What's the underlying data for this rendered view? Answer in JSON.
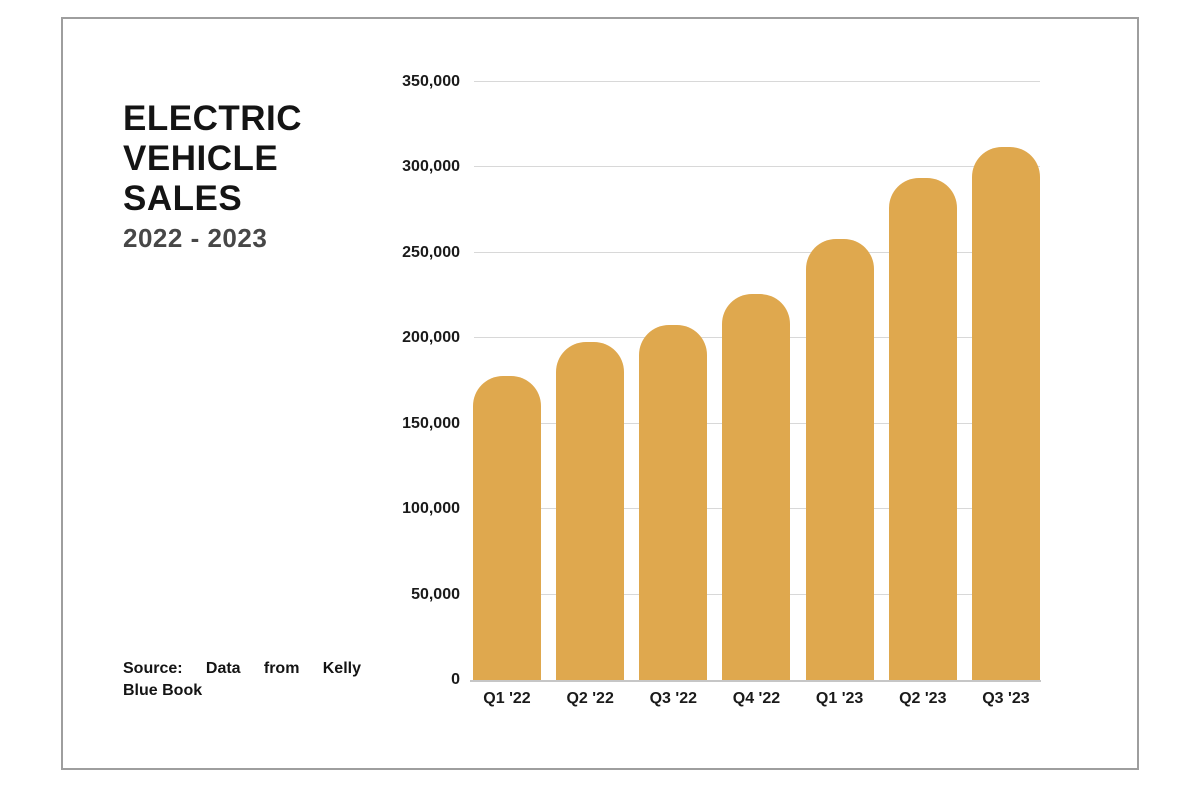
{
  "title": {
    "lines": [
      "ELECTRIC",
      "VEHICLE",
      "SALES"
    ],
    "subtitle": "2022 - 2023"
  },
  "source": {
    "lines": [
      "Source: Data from Kelly",
      "Blue Book"
    ]
  },
  "chart_data": {
    "type": "bar",
    "title": "Electric Vehicle Sales 2022 - 2023",
    "categories": [
      "Q1 '22",
      "Q2 '22",
      "Q3 '22",
      "Q4 '22",
      "Q1 '23",
      "Q2 '23",
      "Q3 '23"
    ],
    "values": [
      178000,
      198000,
      208000,
      226000,
      258000,
      294000,
      312000
    ],
    "xlabel": "",
    "ylabel": "",
    "ylim": [
      0,
      350000
    ],
    "yticks": [
      {
        "value": 0,
        "label": "0"
      },
      {
        "value": 50000,
        "label": "50,000"
      },
      {
        "value": 100000,
        "label": "100,000"
      },
      {
        "value": 150000,
        "label": "150,000"
      },
      {
        "value": 200000,
        "label": "200,000"
      },
      {
        "value": 250000,
        "label": "250,000"
      },
      {
        "value": 300000,
        "label": "300,000"
      },
      {
        "value": 350000,
        "label": "350,000"
      }
    ],
    "grid": "horizontal",
    "legend": "none",
    "bar_color": "#DFA84E",
    "gridline_color": "#D8D8D8",
    "baseline_color": "#C6C6C6",
    "frame_color": "#9E9E9E"
  }
}
